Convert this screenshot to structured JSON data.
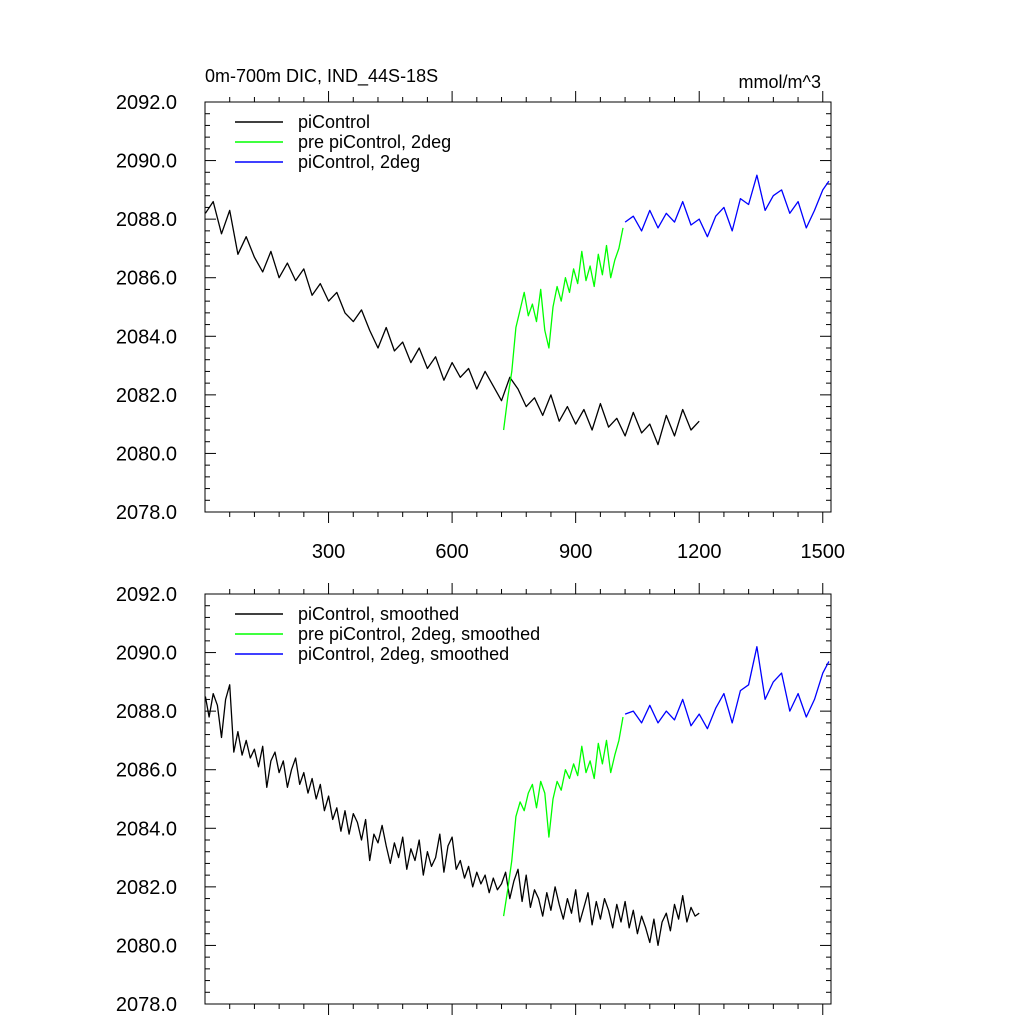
{
  "chart_data": [
    {
      "type": "line",
      "title": "0m-700m DIC, IND_44S-18S",
      "units": "mmol/m^3",
      "xlabel": "",
      "ylabel": "",
      "xlim": [
        0,
        1520
      ],
      "ylim": [
        2078.0,
        2092.0
      ],
      "x_ticks": [
        300,
        600,
        900,
        1200,
        1500
      ],
      "x_tick_labels": [
        "300",
        "600",
        "900",
        "1200",
        "1500"
      ],
      "y_ticks": [
        2078.0,
        2080.0,
        2082.0,
        2084.0,
        2086.0,
        2088.0,
        2090.0,
        2092.0
      ],
      "y_tick_labels": [
        "2078.0",
        "2080.0",
        "2082.0",
        "2084.0",
        "2086.0",
        "2088.0",
        "2090.0",
        "2092.0"
      ],
      "grid": false,
      "legend_position": "top-left",
      "series": [
        {
          "name": "piControl",
          "color": "#000000",
          "x": [
            1,
            20,
            40,
            60,
            80,
            100,
            120,
            140,
            160,
            180,
            200,
            220,
            240,
            260,
            280,
            300,
            320,
            340,
            360,
            380,
            400,
            420,
            440,
            460,
            480,
            500,
            520,
            540,
            560,
            580,
            600,
            620,
            640,
            660,
            680,
            700,
            720,
            740,
            760,
            780,
            800,
            820,
            840,
            860,
            880,
            900,
            920,
            940,
            960,
            980,
            1000,
            1020,
            1040,
            1060,
            1080,
            1100,
            1120,
            1140,
            1160,
            1180,
            1200
          ],
          "y": [
            2088.2,
            2088.6,
            2087.5,
            2088.3,
            2086.8,
            2087.4,
            2086.7,
            2086.2,
            2086.9,
            2086.0,
            2086.5,
            2085.9,
            2086.3,
            2085.4,
            2085.8,
            2085.2,
            2085.5,
            2084.8,
            2084.5,
            2084.9,
            2084.2,
            2083.6,
            2084.3,
            2083.5,
            2083.8,
            2083.1,
            2083.6,
            2082.9,
            2083.3,
            2082.5,
            2083.1,
            2082.6,
            2082.9,
            2082.2,
            2082.8,
            2082.3,
            2081.8,
            2082.6,
            2082.2,
            2081.6,
            2081.9,
            2081.3,
            2082.0,
            2081.1,
            2081.6,
            2081.0,
            2081.5,
            2080.8,
            2081.7,
            2080.9,
            2081.2,
            2080.6,
            2081.4,
            2080.7,
            2081.0,
            2080.3,
            2081.3,
            2080.6,
            2081.5,
            2080.8,
            2081.1
          ]
        },
        {
          "name": "pre piControl, 2deg",
          "color": "#00ff00",
          "x": [
            725,
            735,
            745,
            755,
            765,
            775,
            785,
            795,
            805,
            815,
            825,
            835,
            845,
            855,
            865,
            875,
            885,
            895,
            905,
            915,
            925,
            935,
            945,
            955,
            965,
            975,
            985,
            995,
            1005,
            1015
          ],
          "y": [
            2080.8,
            2081.9,
            2082.8,
            2084.3,
            2084.9,
            2085.5,
            2084.7,
            2085.1,
            2084.5,
            2085.6,
            2084.2,
            2083.6,
            2085.0,
            2085.7,
            2085.2,
            2086.0,
            2085.5,
            2086.3,
            2085.8,
            2086.9,
            2085.9,
            2086.4,
            2085.7,
            2086.8,
            2086.1,
            2087.1,
            2086.0,
            2086.6,
            2087.0,
            2087.7
          ]
        },
        {
          "name": "piControl, 2deg",
          "color": "#0000ff",
          "x": [
            1020,
            1040,
            1060,
            1080,
            1100,
            1120,
            1140,
            1160,
            1180,
            1200,
            1220,
            1240,
            1260,
            1280,
            1300,
            1320,
            1340,
            1360,
            1380,
            1400,
            1420,
            1440,
            1460,
            1480,
            1500,
            1515
          ],
          "y": [
            2087.9,
            2088.1,
            2087.6,
            2088.3,
            2087.7,
            2088.2,
            2087.9,
            2088.6,
            2087.8,
            2088.0,
            2087.4,
            2088.1,
            2088.4,
            2087.6,
            2088.7,
            2088.5,
            2089.5,
            2088.3,
            2088.8,
            2089.0,
            2088.2,
            2088.6,
            2087.7,
            2088.3,
            2089.0,
            2089.3
          ]
        }
      ]
    },
    {
      "type": "line",
      "title": "",
      "units": "",
      "xlabel": "",
      "ylabel": "",
      "xlim": [
        0,
        1520
      ],
      "ylim": [
        2078.0,
        2092.0
      ],
      "x_ticks": [
        300,
        600,
        900,
        1200,
        1500
      ],
      "x_tick_labels": [],
      "y_ticks": [
        2078.0,
        2080.0,
        2082.0,
        2084.0,
        2086.0,
        2088.0,
        2090.0,
        2092.0
      ],
      "y_tick_labels": [
        "2078.0",
        "2080.0",
        "2082.0",
        "2084.0",
        "2086.0",
        "2088.0",
        "2090.0",
        "2092.0"
      ],
      "grid": false,
      "legend_position": "top-left",
      "series": [
        {
          "name": "piControl, smoothed",
          "color": "#000000",
          "x": [
            1,
            10,
            20,
            30,
            40,
            50,
            60,
            70,
            80,
            90,
            100,
            110,
            120,
            130,
            140,
            150,
            160,
            170,
            180,
            190,
            200,
            210,
            220,
            230,
            240,
            250,
            260,
            270,
            280,
            290,
            300,
            310,
            320,
            330,
            340,
            350,
            360,
            370,
            380,
            390,
            400,
            410,
            420,
            430,
            440,
            450,
            460,
            470,
            480,
            490,
            500,
            510,
            520,
            530,
            540,
            550,
            560,
            570,
            580,
            590,
            600,
            610,
            620,
            630,
            640,
            650,
            660,
            670,
            680,
            690,
            700,
            710,
            720,
            730,
            740,
            750,
            760,
            770,
            780,
            790,
            800,
            810,
            820,
            830,
            840,
            850,
            860,
            870,
            880,
            890,
            900,
            910,
            920,
            930,
            940,
            950,
            960,
            970,
            980,
            990,
            1000,
            1010,
            1020,
            1030,
            1040,
            1050,
            1060,
            1070,
            1080,
            1090,
            1100,
            1110,
            1120,
            1130,
            1140,
            1150,
            1160,
            1170,
            1180,
            1190,
            1200
          ],
          "y": [
            2088.5,
            2087.8,
            2088.6,
            2088.2,
            2087.1,
            2088.4,
            2088.9,
            2086.6,
            2087.3,
            2086.5,
            2087.0,
            2086.4,
            2086.7,
            2086.1,
            2086.8,
            2085.4,
            2086.3,
            2086.6,
            2085.9,
            2086.3,
            2085.4,
            2086.0,
            2086.4,
            2085.5,
            2085.9,
            2085.2,
            2085.7,
            2085.0,
            2085.5,
            2084.6,
            2085.1,
            2084.3,
            2084.7,
            2083.9,
            2084.6,
            2083.8,
            2084.5,
            2084.2,
            2083.6,
            2084.3,
            2082.9,
            2083.8,
            2083.5,
            2084.1,
            2083.4,
            2082.8,
            2083.5,
            2083.0,
            2083.7,
            2082.6,
            2083.3,
            2082.9,
            2083.6,
            2082.4,
            2083.2,
            2082.7,
            2083.0,
            2083.8,
            2082.5,
            2083.4,
            2083.7,
            2082.6,
            2082.9,
            2082.3,
            2082.7,
            2082.0,
            2082.5,
            2082.1,
            2082.4,
            2081.8,
            2082.3,
            2081.9,
            2082.1,
            2082.5,
            2081.6,
            2082.2,
            2082.6,
            2081.5,
            2082.4,
            2081.3,
            2081.9,
            2081.6,
            2081.0,
            2081.8,
            2081.2,
            2082.0,
            2081.4,
            2080.9,
            2081.6,
            2081.1,
            2081.9,
            2080.8,
            2081.3,
            2081.8,
            2080.7,
            2081.5,
            2080.9,
            2081.6,
            2081.2,
            2080.6,
            2081.4,
            2080.8,
            2081.5,
            2080.6,
            2081.2,
            2080.4,
            2081.0,
            2080.6,
            2080.1,
            2080.9,
            2080.0,
            2080.8,
            2081.1,
            2080.5,
            2081.4,
            2080.9,
            2081.7,
            2080.8,
            2081.3,
            2081.0,
            2081.1
          ]
        },
        {
          "name": "pre piControl, 2deg, smoothed",
          "color": "#00ff00",
          "x": [
            725,
            735,
            745,
            755,
            765,
            775,
            785,
            795,
            805,
            815,
            825,
            835,
            845,
            855,
            865,
            875,
            885,
            895,
            905,
            915,
            925,
            935,
            945,
            955,
            965,
            975,
            985,
            995,
            1005,
            1015
          ],
          "y": [
            2081.0,
            2081.9,
            2082.9,
            2084.4,
            2084.9,
            2084.6,
            2085.2,
            2085.5,
            2084.7,
            2085.6,
            2085.2,
            2083.7,
            2085.0,
            2085.6,
            2085.3,
            2086.0,
            2085.7,
            2086.2,
            2085.8,
            2086.8,
            2085.9,
            2086.3,
            2085.7,
            2086.9,
            2086.2,
            2087.0,
            2085.9,
            2086.5,
            2087.0,
            2087.8
          ]
        },
        {
          "name": "piControl, 2deg, smoothed",
          "color": "#0000ff",
          "x": [
            1020,
            1040,
            1060,
            1080,
            1100,
            1120,
            1140,
            1160,
            1180,
            1200,
            1220,
            1240,
            1260,
            1280,
            1300,
            1320,
            1340,
            1360,
            1380,
            1400,
            1420,
            1440,
            1460,
            1480,
            1500,
            1515
          ],
          "y": [
            2087.9,
            2088.0,
            2087.6,
            2088.2,
            2087.6,
            2088.0,
            2087.7,
            2088.4,
            2087.5,
            2087.9,
            2087.4,
            2088.1,
            2088.6,
            2087.6,
            2088.7,
            2088.9,
            2090.2,
            2088.4,
            2089.0,
            2089.3,
            2088.0,
            2088.6,
            2087.8,
            2088.4,
            2089.3,
            2089.7
          ]
        }
      ]
    }
  ]
}
